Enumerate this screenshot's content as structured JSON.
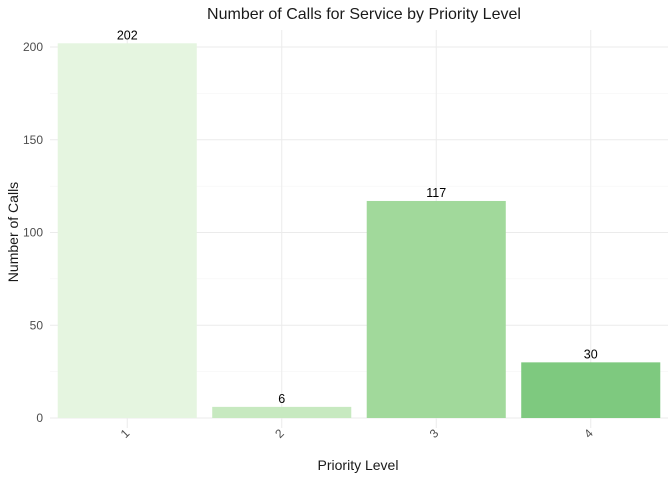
{
  "chart_data": {
    "type": "bar",
    "title": "Number of Calls for Service by Priority Level",
    "xlabel": "Priority Level",
    "ylabel": "Number of Calls",
    "categories": [
      "1",
      "2",
      "3",
      "4"
    ],
    "values": [
      202,
      6,
      117,
      30
    ],
    "data_labels": [
      "202",
      "6",
      "117",
      "30"
    ],
    "bar_colors": [
      "#e5f5e0",
      "#c7e9c0",
      "#a1d99b",
      "#7ec97f"
    ],
    "ylim": [
      0,
      210
    ],
    "yticks": [
      0,
      50,
      100,
      150,
      200
    ],
    "ytick_labels": [
      "0",
      "50",
      "100",
      "150",
      "200"
    ],
    "grid": true,
    "legend": "none",
    "x_tick_rotation": "45 degrees"
  }
}
